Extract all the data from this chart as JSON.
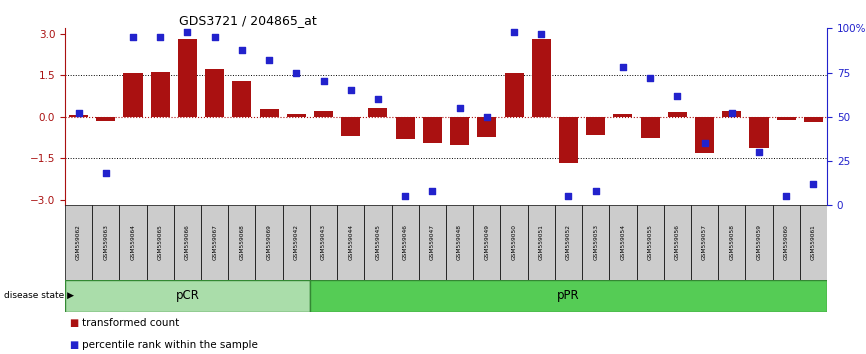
{
  "title": "GDS3721 / 204865_at",
  "samples": [
    "GSM559062",
    "GSM559063",
    "GSM559064",
    "GSM559065",
    "GSM559066",
    "GSM559067",
    "GSM559068",
    "GSM559069",
    "GSM559042",
    "GSM559043",
    "GSM559044",
    "GSM559045",
    "GSM559046",
    "GSM559047",
    "GSM559048",
    "GSM559049",
    "GSM559050",
    "GSM559051",
    "GSM559052",
    "GSM559053",
    "GSM559054",
    "GSM559055",
    "GSM559056",
    "GSM559057",
    "GSM559058",
    "GSM559059",
    "GSM559060",
    "GSM559061"
  ],
  "bar_values": [
    0.05,
    -0.15,
    1.6,
    1.62,
    2.82,
    1.72,
    1.28,
    0.28,
    0.12,
    0.22,
    -0.68,
    0.32,
    -0.82,
    -0.95,
    -1.02,
    -0.72,
    1.57,
    2.82,
    -1.67,
    -0.67,
    0.12,
    -0.77,
    0.17,
    -1.32,
    0.22,
    -1.12,
    -0.12,
    -0.17
  ],
  "scatter_values": [
    52,
    18,
    95,
    95,
    98,
    95,
    88,
    82,
    75,
    70,
    65,
    60,
    5,
    8,
    55,
    50,
    98,
    97,
    5,
    8,
    78,
    72,
    62,
    35,
    52,
    30,
    5,
    12
  ],
  "pCR_count": 9,
  "pPR_count": 19,
  "ylim": [
    -3.2,
    3.2
  ],
  "yticks_left": [
    -3,
    -1.5,
    0,
    1.5,
    3
  ],
  "yticks_right": [
    0,
    25,
    50,
    75,
    100
  ],
  "bar_color": "#aa1111",
  "scatter_color": "#2222cc",
  "pCR_color": "#aaddaa",
  "pPR_color": "#55cc55",
  "label_bg_color": "#cccccc",
  "legend_bar_label": "transformed count",
  "legend_scatter_label": "percentile rank within the sample",
  "disease_state_label": "disease state",
  "pCR_label": "pCR",
  "pPR_label": "pPR"
}
